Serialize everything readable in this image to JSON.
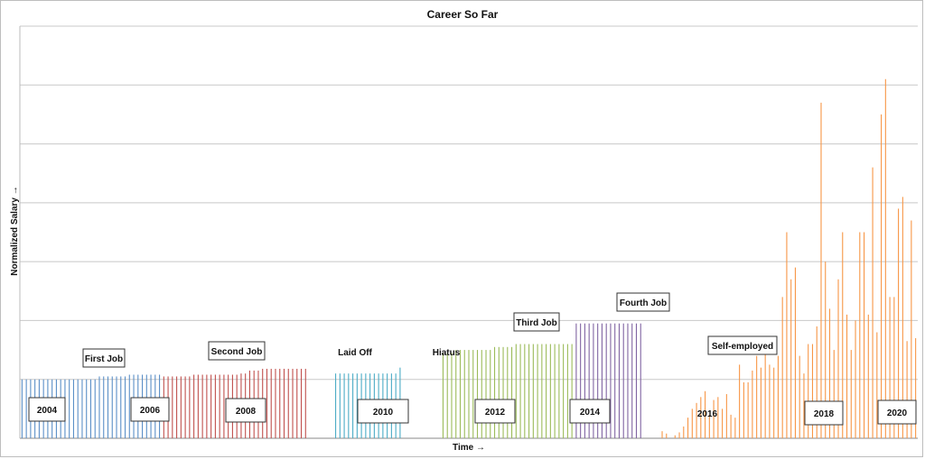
{
  "chart_data": {
    "type": "bar",
    "title": "Career So Far",
    "xlabel": "Time →",
    "ylabel": "Normalized Salary →",
    "ylim": [
      0,
      7
    ],
    "grid": true,
    "legend": "none",
    "series": [
      {
        "name": "First Job",
        "color": "#5b8fc7",
        "start": 0,
        "values": [
          1.0,
          1.0,
          1.0,
          1.0,
          1.0,
          1.0,
          1.0,
          1.0,
          1.0,
          1.0,
          1.0,
          1.0,
          1.0,
          1.0,
          1.0,
          1.0,
          1.0,
          1.0,
          1.05,
          1.05,
          1.05,
          1.05,
          1.05,
          1.05,
          1.05,
          1.08,
          1.08,
          1.08,
          1.08,
          1.08,
          1.08,
          1.08,
          1.08
        ]
      },
      {
        "name": "Second Job",
        "color": "#c0504d",
        "start": 33,
        "values": [
          1.05,
          1.05,
          1.05,
          1.05,
          1.05,
          1.05,
          1.05,
          1.08,
          1.08,
          1.08,
          1.08,
          1.08,
          1.08,
          1.08,
          1.08,
          1.08,
          1.08,
          1.08,
          1.1,
          1.1,
          1.15,
          1.15,
          1.15,
          1.18,
          1.18,
          1.18,
          1.18,
          1.18,
          1.18,
          1.18,
          1.18,
          1.18,
          1.18,
          1.18
        ]
      },
      {
        "name": "Laid Off",
        "color": "#4bacc6",
        "start": 73,
        "values": [
          1.1,
          1.1,
          1.1,
          1.1,
          1.1,
          1.1,
          1.1,
          1.1,
          1.1,
          1.1,
          1.1,
          1.1,
          1.1,
          1.1,
          1.1,
          1.2
        ]
      },
      {
        "name": "Hiatus",
        "color": "#9bbb59",
        "start": 98,
        "values": [
          1.45,
          1.45,
          1.45,
          1.5,
          1.5,
          1.5,
          1.5,
          1.5,
          1.5,
          1.5,
          1.5,
          1.5,
          1.55,
          1.55,
          1.55,
          1.55,
          1.55,
          1.6,
          1.6,
          1.6,
          1.6,
          1.6,
          1.6,
          1.6,
          1.6,
          1.6,
          1.6,
          1.6,
          1.6,
          1.6,
          1.6
        ]
      },
      {
        "name": "Fourth Job",
        "color": "#8064a2",
        "start": 129,
        "values": [
          1.95,
          1.95,
          1.95,
          1.95,
          1.95,
          1.95,
          1.95,
          1.95,
          1.95,
          1.95,
          1.95,
          1.95,
          1.95,
          1.95,
          1.95,
          1.95
        ]
      },
      {
        "name": "Self-employed",
        "color": "#f79646",
        "start": 149,
        "values": [
          0.12,
          0.08,
          0.0,
          0.05,
          0.1,
          0.2,
          0.35,
          0.5,
          0.6,
          0.7,
          0.8,
          0.4,
          0.65,
          0.7,
          0.5,
          0.75,
          0.4,
          0.35,
          1.25,
          0.95,
          0.95,
          1.15,
          1.4,
          1.2,
          1.5,
          1.25,
          1.2,
          1.4,
          2.4,
          3.5,
          2.7,
          2.9,
          1.4,
          1.1,
          1.6,
          1.6,
          1.9,
          5.7,
          3.0,
          2.2,
          1.5,
          2.7,
          3.5,
          2.1,
          1.5,
          2.0,
          3.5,
          3.5,
          2.1,
          4.6,
          1.8,
          5.5,
          6.1,
          2.4,
          2.4,
          3.9,
          4.1,
          1.65,
          3.7,
          1.7
        ]
      }
    ],
    "annotations": [
      "First Job",
      "Second Job",
      "Laid Off",
      "Hiatus",
      "Third Job",
      "Fourth Job",
      "Self-employed"
    ],
    "year_labels": [
      "2004",
      "2006",
      "2008",
      "2010",
      "2012",
      "2014",
      "2016",
      "2018",
      "2020"
    ]
  }
}
